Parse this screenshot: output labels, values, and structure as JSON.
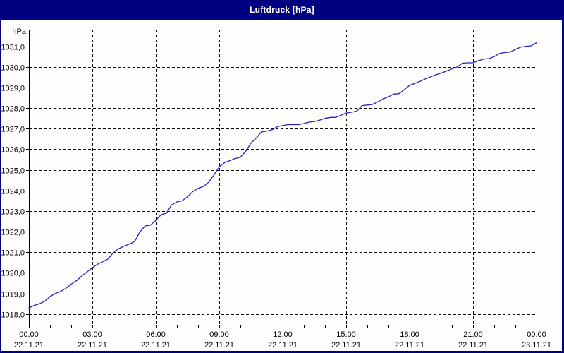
{
  "window": {
    "title": "Luftdruck [hPa]"
  },
  "colors": {
    "frame": "#000080",
    "title_text": "#ffffff",
    "plot_background": "#fefefe",
    "grid": "#000000",
    "axis": "#000000",
    "curve": "#2121c8",
    "tick_text": "#000000"
  },
  "chart_data": {
    "type": "line",
    "title": "Luftdruck [hPa]",
    "ylabel": "hPa",
    "legend": "none",
    "grid": "dashed",
    "x_axis": {
      "xlim_hours": [
        0,
        24
      ],
      "minor_tick_every_hours": 1,
      "tick_hours": [
        0,
        3,
        6,
        9,
        12,
        15,
        18,
        21,
        24
      ],
      "ticks": [
        {
          "time": "00:00",
          "date": "22.11.21"
        },
        {
          "time": "03:00",
          "date": "22.11.21"
        },
        {
          "time": "06:00",
          "date": "22.11.21"
        },
        {
          "time": "09:00",
          "date": "22.11.21"
        },
        {
          "time": "12:00",
          "date": "22.11.21"
        },
        {
          "time": "15:00",
          "date": "22.11.21"
        },
        {
          "time": "18:00",
          "date": "22.11.21"
        },
        {
          "time": "21:00",
          "date": "22.11.21"
        },
        {
          "time": "00:00",
          "date": "23.11.21"
        }
      ]
    },
    "y_axis": {
      "ylim": [
        1017.48,
        1031.81
      ],
      "tick_values": [
        1018,
        1019,
        1020,
        1021,
        1022,
        1023,
        1024,
        1025,
        1026,
        1027,
        1028,
        1029,
        1030,
        1031
      ],
      "tick_labels": [
        "1018,0",
        "1019,0",
        "1020,0",
        "1021,0",
        "1022,0",
        "1023,0",
        "1024,0",
        "1025,0",
        "1026,0",
        "1027,0",
        "1028,0",
        "1029,0",
        "1030,0",
        "1031,0"
      ]
    },
    "series": [
      {
        "name": "Luftdruck",
        "color": "#2121c8",
        "x_start_hours": 0,
        "x_step_hours": 0.25,
        "y_hpa": [
          1018.3,
          1018.42,
          1018.5,
          1018.62,
          1018.85,
          1019.0,
          1019.1,
          1019.25,
          1019.45,
          1019.62,
          1019.85,
          1020.05,
          1020.25,
          1020.42,
          1020.55,
          1020.68,
          1021.0,
          1021.18,
          1021.3,
          1021.4,
          1021.52,
          1022.0,
          1022.28,
          1022.32,
          1022.55,
          1022.82,
          1022.9,
          1023.3,
          1023.45,
          1023.5,
          1023.7,
          1023.95,
          1024.1,
          1024.2,
          1024.4,
          1024.75,
          1025.15,
          1025.35,
          1025.45,
          1025.55,
          1025.62,
          1025.9,
          1026.3,
          1026.55,
          1026.85,
          1026.88,
          1026.95,
          1027.1,
          1027.15,
          1027.2,
          1027.2,
          1027.2,
          1027.25,
          1027.32,
          1027.35,
          1027.42,
          1027.5,
          1027.55,
          1027.55,
          1027.65,
          1027.76,
          1027.8,
          1027.85,
          1028.12,
          1028.15,
          1028.18,
          1028.3,
          1028.45,
          1028.55,
          1028.68,
          1028.7,
          1028.9,
          1029.1,
          1029.2,
          1029.3,
          1029.42,
          1029.52,
          1029.62,
          1029.7,
          1029.8,
          1029.9,
          1030.0,
          1030.18,
          1030.2,
          1030.2,
          1030.3,
          1030.38,
          1030.4,
          1030.5,
          1030.65,
          1030.7,
          1030.72,
          1030.85,
          1030.96,
          1031.0,
          1031.02,
          1031.18
        ]
      }
    ]
  }
}
